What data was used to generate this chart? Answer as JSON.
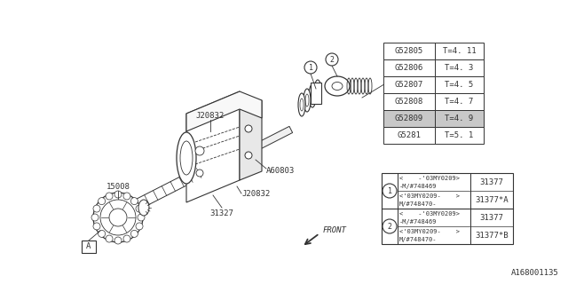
{
  "bg_color": "#ffffff",
  "diagram_id": "A168001135",
  "top_table": {
    "col1": [
      "G52805",
      "G52806",
      "G52807",
      "G52808",
      "G52809",
      "G5281"
    ],
    "col2": [
      "T=4. 11",
      "T=4. 3",
      "T=4. 5",
      "T=4. 7",
      "T=4. 9",
      "T=5. 1"
    ],
    "highlight_row": 4
  },
  "bottom_table": {
    "rows": [
      {
        "circle": "1",
        "desc1": "<    -'03MY0209>",
        "desc2": "-M/#748469",
        "part": "31377"
      },
      {
        "circle": "1",
        "desc1": "<'03MY0209-    >",
        "desc2": "M/#748470-",
        "part": "31377*A"
      },
      {
        "circle": "2",
        "desc1": "<    -'03MY0209>",
        "desc2": "-M/#748469",
        "part": "31377"
      },
      {
        "circle": "2",
        "desc1": "<'03MY0209-    >",
        "desc2": "M/#748470-",
        "part": "31377*B"
      }
    ]
  },
  "labels": {
    "J20832_top": "J20832",
    "J20832_bot": "J20832",
    "A60803": "A60803",
    "l15008": "15008",
    "l31327": "31327",
    "A_box": "A",
    "front": "FRONT"
  },
  "lc": "#333333",
  "font_size": 6.5
}
